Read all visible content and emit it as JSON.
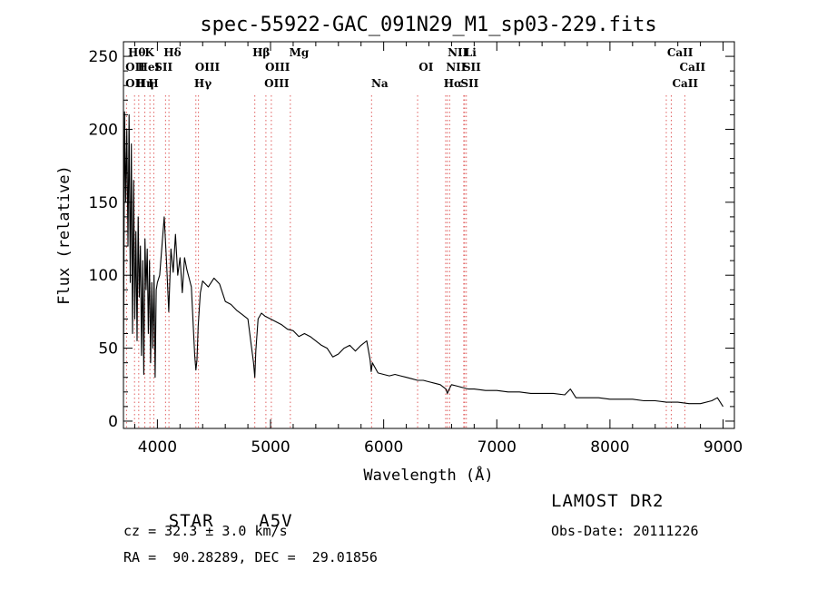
{
  "chart_data": {
    "type": "line",
    "title": "spec-55922-GAC_091N29_M1_sp03-229.fits",
    "xlabel": "Wavelength (Å)",
    "ylabel": "Flux (relative)",
    "xlim": [
      3700,
      9100
    ],
    "ylim": [
      -5,
      260
    ],
    "xticks": [
      4000,
      5000,
      6000,
      7000,
      8000,
      9000
    ],
    "yticks": [
      0,
      50,
      100,
      150,
      200,
      250
    ],
    "grid": false,
    "series": [
      {
        "x": [
          3700,
          3710,
          3720,
          3730,
          3740,
          3750,
          3760,
          3770,
          3780,
          3790,
          3800,
          3810,
          3820,
          3830,
          3840,
          3850,
          3860,
          3870,
          3880,
          3890,
          3900,
          3910,
          3920,
          3930,
          3940,
          3950,
          3960,
          3970,
          3980,
          3990,
          4000,
          4020,
          4040,
          4060,
          4080,
          4100,
          4120,
          4140,
          4160,
          4180,
          4200,
          4220,
          4240,
          4260,
          4280,
          4300,
          4320,
          4330,
          4340,
          4350,
          4360,
          4380,
          4400,
          4450,
          4500,
          4550,
          4600,
          4650,
          4700,
          4750,
          4800,
          4830,
          4850,
          4861,
          4870,
          4890,
          4920,
          4950,
          5000,
          5050,
          5100,
          5150,
          5200,
          5250,
          5300,
          5350,
          5400,
          5450,
          5500,
          5550,
          5600,
          5650,
          5700,
          5750,
          5800,
          5850,
          5880,
          5890,
          5900,
          5950,
          6000,
          6050,
          6100,
          6150,
          6200,
          6250,
          6300,
          6350,
          6400,
          6450,
          6500,
          6550,
          6563,
          6580,
          6600,
          6650,
          6700,
          6750,
          6800,
          6900,
          7000,
          7100,
          7200,
          7300,
          7400,
          7500,
          7600,
          7650,
          7700,
          7800,
          7900,
          8000,
          8100,
          8200,
          8300,
          8400,
          8500,
          8600,
          8700,
          8800,
          8900,
          8950,
          9000
        ],
        "y": [
          30,
          212,
          150,
          200,
          120,
          210,
          95,
          190,
          60,
          165,
          70,
          130,
          55,
          140,
          85,
          120,
          45,
          110,
          32,
          125,
          90,
          118,
          60,
          110,
          40,
          95,
          50,
          100,
          30,
          90,
          95,
          100,
          120,
          140,
          110,
          75,
          118,
          102,
          128,
          100,
          112,
          88,
          112,
          104,
          98,
          92,
          60,
          45,
          35,
          42,
          65,
          88,
          96,
          92,
          98,
          94,
          82,
          80,
          76,
          73,
          70,
          52,
          40,
          30,
          48,
          70,
          74,
          72,
          70,
          68,
          66,
          63,
          62,
          58,
          60,
          58,
          55,
          52,
          50,
          44,
          46,
          50,
          52,
          48,
          52,
          55,
          42,
          34,
          40,
          33,
          32,
          31,
          32,
          31,
          30,
          29,
          28,
          28,
          27,
          26,
          25,
          22,
          19,
          22,
          25,
          24,
          23,
          22,
          22,
          21,
          21,
          20,
          20,
          19,
          19,
          19,
          18,
          22,
          16,
          16,
          16,
          15,
          15,
          15,
          14,
          14,
          13,
          13,
          12,
          12,
          14,
          16,
          10
        ]
      }
    ],
    "line_markers": [
      {
        "label": "Hθ",
        "wl": 3798,
        "row": 1,
        "lx": 3740
      },
      {
        "label": "K",
        "wl": 3934,
        "row": 1,
        "lx": 3888
      },
      {
        "label": "Hδ",
        "wl": 4102,
        "row": 1,
        "lx": 4055
      },
      {
        "label": "OII",
        "wl": 3727,
        "row": 2,
        "lx": 3717
      },
      {
        "label": "HeI",
        "wl": 3889,
        "row": 2,
        "lx": 3825
      },
      {
        "label": "SII",
        "wl": 4072,
        "row": 2,
        "lx": 3975
      },
      {
        "label": "OIII",
        "wl": 4363,
        "row": 2,
        "lx": 4332
      },
      {
        "label": "OII",
        "wl": 3727,
        "row": 3,
        "lx": 3717
      },
      {
        "label": "Hη",
        "wl": 3835,
        "row": 3,
        "lx": 3810
      },
      {
        "label": "H",
        "wl": 3968,
        "row": 3,
        "lx": 3920
      },
      {
        "label": "Hγ",
        "wl": 4340,
        "row": 3,
        "lx": 4325
      },
      {
        "label": "Hβ",
        "wl": 4861,
        "row": 1,
        "lx": 4840
      },
      {
        "label": "Mg",
        "wl": 5175,
        "row": 1,
        "lx": 5165
      },
      {
        "label": "OIII",
        "wl": 5007,
        "row": 2,
        "lx": 4952
      },
      {
        "label": "OIII",
        "wl": 4959,
        "row": 3,
        "lx": 4945
      },
      {
        "label": "Na",
        "wl": 5893,
        "row": 3,
        "lx": 5890
      },
      {
        "label": "OI",
        "wl": 6300,
        "row": 2,
        "lx": 6310
      },
      {
        "label": "NII",
        "wl": 6548,
        "row": 1,
        "lx": 6565
      },
      {
        "label": "Li",
        "wl": 6708,
        "row": 1,
        "lx": 6715
      },
      {
        "label": "NII",
        "wl": 6583,
        "row": 2,
        "lx": 6550
      },
      {
        "label": "SII",
        "wl": 6716,
        "row": 2,
        "lx": 6700
      },
      {
        "label": "Hα",
        "wl": 6563,
        "row": 3,
        "lx": 6530
      },
      {
        "label": "SII",
        "wl": 6731,
        "row": 3,
        "lx": 6680
      },
      {
        "label": "CaII",
        "wl": 8498,
        "row": 1,
        "lx": 8505
      },
      {
        "label": "CaII",
        "wl": 8542,
        "row": 2,
        "lx": 8615
      },
      {
        "label": "CaII",
        "wl": 8662,
        "row": 3,
        "lx": 8550
      }
    ],
    "line_color": "#000000",
    "marker_color": "#e06060"
  },
  "info": {
    "object_class": "STAR",
    "subclass": "A5V",
    "survey": "LAMOST DR2",
    "redshift": "cz = 32.3 ± 3.0 km/s",
    "obs_date": "Obs-Date: 20111226",
    "coords": "RA =  90.28289, DEC =  29.01856"
  }
}
